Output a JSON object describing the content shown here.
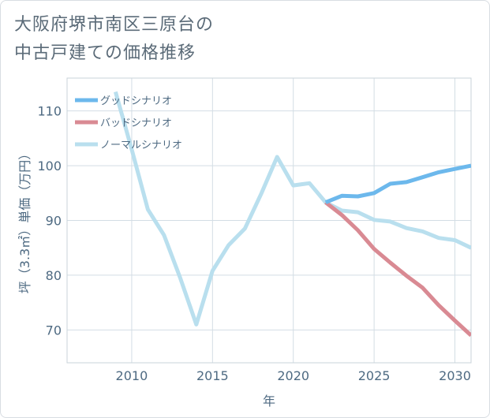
{
  "title": {
    "line1": "大阪府堺市南区三原台の",
    "line2": "中古戸建ての価格推移"
  },
  "chart_data": {
    "type": "line",
    "xlabel": "年",
    "ylabel": "坪（3.3㎡）単価（万円）",
    "xlim": [
      2006,
      2031
    ],
    "ylim": [
      64,
      116
    ],
    "x_ticks": [
      2010,
      2015,
      2020,
      2025,
      2030
    ],
    "y_ticks": [
      70,
      80,
      90,
      100,
      110
    ],
    "grid": true,
    "legend_position": "top-left",
    "series": [
      {
        "name": "グッドシナリオ",
        "color": "#6cb8ec",
        "x": [
          2022,
          2023,
          2024,
          2025,
          2026,
          2027,
          2028,
          2029,
          2030,
          2031
        ],
        "values": [
          93.3,
          94.5,
          94.4,
          95.0,
          96.7,
          97.0,
          97.9,
          98.8,
          99.4,
          100.0
        ]
      },
      {
        "name": "バッドシナリオ",
        "color": "#d98a93",
        "x": [
          2022,
          2023,
          2024,
          2025,
          2026,
          2027,
          2028,
          2029,
          2030,
          2031
        ],
        "values": [
          93.3,
          91.0,
          88.2,
          84.8,
          82.3,
          79.9,
          77.7,
          74.5,
          71.7,
          69.0
        ]
      },
      {
        "name": "ノーマルシナリオ",
        "color": "#b9dfee",
        "x": [
          2009,
          2010,
          2011,
          2012,
          2013,
          2014,
          2015,
          2016,
          2017,
          2018,
          2019,
          2020,
          2021,
          2022,
          2023,
          2024,
          2025,
          2026,
          2027,
          2028,
          2029,
          2030,
          2031
        ],
        "values": [
          113.5,
          103.0,
          92.0,
          87.3,
          79.5,
          71.0,
          80.8,
          85.5,
          88.5,
          94.8,
          101.6,
          96.4,
          96.8,
          93.3,
          91.8,
          91.5,
          90.1,
          89.8,
          88.6,
          88.0,
          86.8,
          86.4,
          85.0
        ]
      }
    ]
  }
}
